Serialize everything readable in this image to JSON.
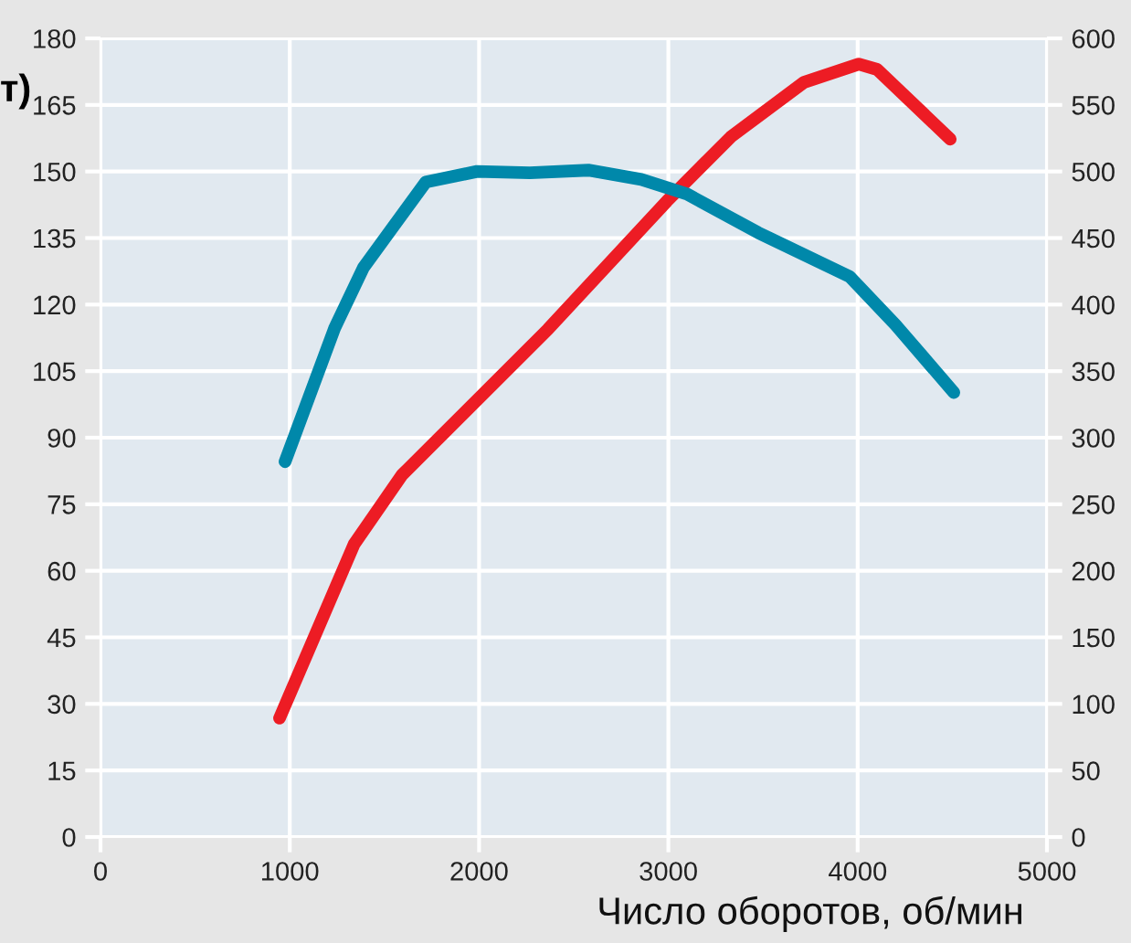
{
  "chart_data": {
    "type": "line",
    "ylabel": "т)",
    "xlabel": "Число оборотов, об/мин",
    "series": [
      {
        "color": "#ed1c24",
        "x": [
          946,
          1340,
          1593,
          2365,
          2992,
          3330,
          3716,
          4006,
          4103,
          4489
        ],
        "values": [
          26.8,
          66,
          81.6,
          114.5,
          143.3,
          157.8,
          170.1,
          174.2,
          173,
          157.3
        ]
      },
      {
        "color": "#0088aa",
        "axis": "y2",
        "x": [
          975,
          1236,
          1390,
          1718,
          1989,
          2268,
          2577,
          2857,
          3099,
          3475,
          3958,
          4199,
          4508
        ],
        "values": [
          282,
          382,
          428,
          492,
          500,
          499,
          501,
          494,
          483,
          454,
          421,
          385,
          334
        ]
      }
    ],
    "xlim": [
      0,
      5000
    ],
    "xticks": [
      0,
      1000,
      2000,
      3000,
      4000,
      5000
    ],
    "ylim": [
      0,
      180
    ],
    "yticks": [
      0,
      15,
      30,
      45,
      60,
      75,
      90,
      105,
      120,
      135,
      150,
      165,
      180
    ],
    "y2lim": [
      0,
      600
    ],
    "y2ticks": [
      0,
      50,
      100,
      150,
      200,
      250,
      300,
      350,
      400,
      450,
      500,
      550,
      600
    ],
    "grid": true,
    "legend": false,
    "marker": "none",
    "line_style": "solid"
  }
}
